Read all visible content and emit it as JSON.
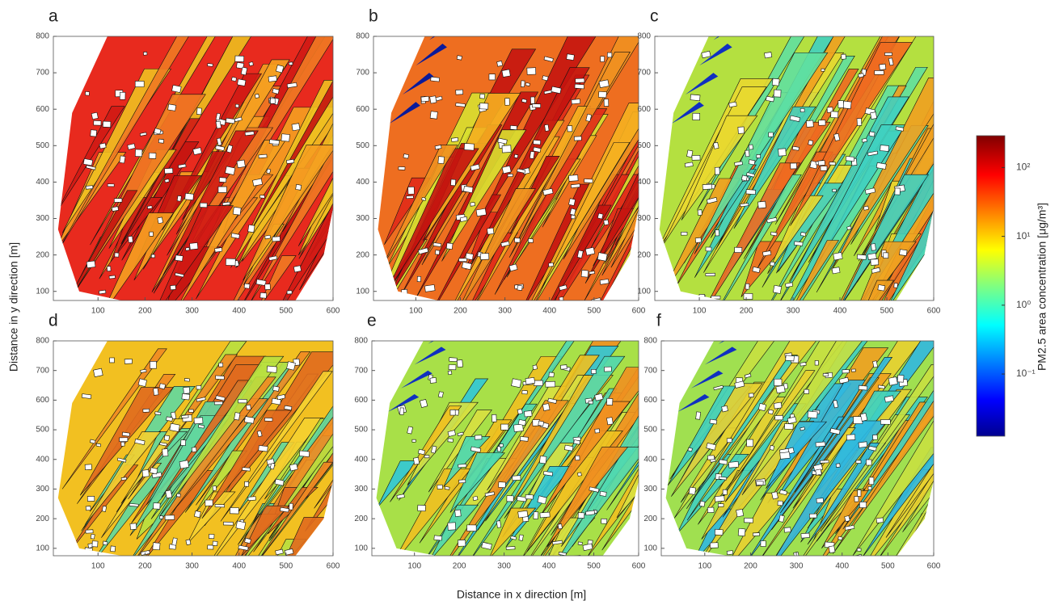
{
  "chart_data": [
    {
      "type": "contour",
      "label": "a",
      "xlim": [
        5,
        600
      ],
      "ylim": [
        75,
        800
      ],
      "xticks": [
        100,
        200,
        300,
        400,
        500,
        600
      ],
      "yticks": [
        100,
        200,
        300,
        400,
        500,
        600,
        700,
        800
      ]
    },
    {
      "type": "contour",
      "label": "b",
      "xlim": [
        5,
        600
      ],
      "ylim": [
        75,
        800
      ],
      "xticks": [
        100,
        200,
        300,
        400,
        500,
        600
      ],
      "yticks": [
        100,
        200,
        300,
        400,
        500,
        600,
        700,
        800
      ]
    },
    {
      "type": "contour",
      "label": "c",
      "xlim": [
        5,
        600
      ],
      "ylim": [
        75,
        800
      ],
      "xticks": [
        100,
        200,
        300,
        400,
        500,
        600
      ],
      "yticks": [
        100,
        200,
        300,
        400,
        500,
        600,
        700,
        800
      ]
    },
    {
      "type": "contour",
      "label": "d",
      "xlim": [
        5,
        600
      ],
      "ylim": [
        75,
        800
      ],
      "xticks": [
        100,
        200,
        300,
        400,
        500,
        600
      ],
      "yticks": [
        100,
        200,
        300,
        400,
        500,
        600,
        700,
        800
      ]
    },
    {
      "type": "contour",
      "label": "e",
      "xlim": [
        5,
        600
      ],
      "ylim": [
        75,
        800
      ],
      "xticks": [
        100,
        200,
        300,
        400,
        500,
        600
      ],
      "yticks": [
        100,
        200,
        300,
        400,
        500,
        600,
        700,
        800
      ]
    },
    {
      "type": "contour",
      "label": "f",
      "xlim": [
        5,
        600
      ],
      "ylim": [
        75,
        800
      ],
      "xticks": [
        100,
        200,
        300,
        400,
        500,
        600
      ],
      "yticks": [
        100,
        200,
        300,
        400,
        500,
        600,
        700,
        800
      ]
    }
  ],
  "colorbar": {
    "scale": "log",
    "lim": [
      0.0125,
      290
    ],
    "ticks": [
      {
        "value": 0.1,
        "label": "10⁻¹"
      },
      {
        "value": 1,
        "label": "10⁰"
      },
      {
        "value": 10,
        "label": "10¹"
      },
      {
        "value": 100,
        "label": "10²"
      }
    ],
    "label": "PM2.5 area concentration  [μg/m³]"
  },
  "ylabel": "Distance in y direction [m]",
  "xlabel": "Distance in x direction [m]"
}
